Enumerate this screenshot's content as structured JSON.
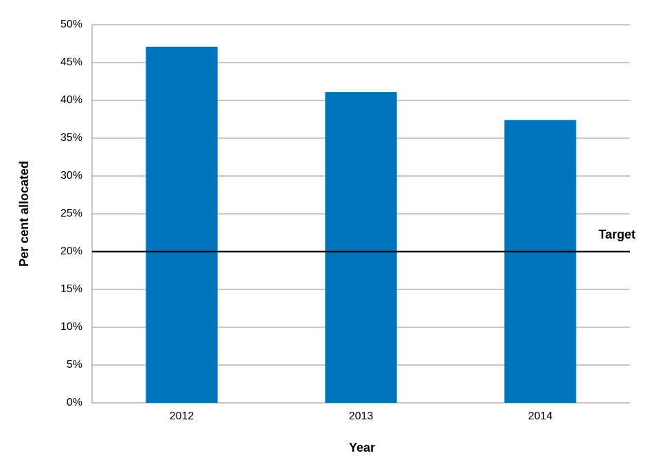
{
  "chart_data": {
    "type": "bar",
    "x_label": "Year",
    "y_label": "Per cent allocated",
    "categories": [
      "2012",
      "2013",
      "2014"
    ],
    "values": [
      47.1,
      41.1,
      37.4
    ],
    "color": "#0074bd",
    "ylim": [
      0,
      50
    ],
    "yticks": [
      {
        "value": 0,
        "label": "0%"
      },
      {
        "value": 5,
        "label": "5%"
      },
      {
        "value": 10,
        "label": "10%"
      },
      {
        "value": 15,
        "label": "15%"
      },
      {
        "value": 20,
        "label": "20%"
      },
      {
        "value": 25,
        "label": "25%"
      },
      {
        "value": 30,
        "label": "30%"
      },
      {
        "value": 35,
        "label": "35%"
      },
      {
        "value": 40,
        "label": "40%"
      },
      {
        "value": 45,
        "label": "45%"
      },
      {
        "value": 50,
        "label": "50%"
      }
    ],
    "grid": true,
    "target": {
      "value": 20,
      "label": "Target"
    }
  }
}
